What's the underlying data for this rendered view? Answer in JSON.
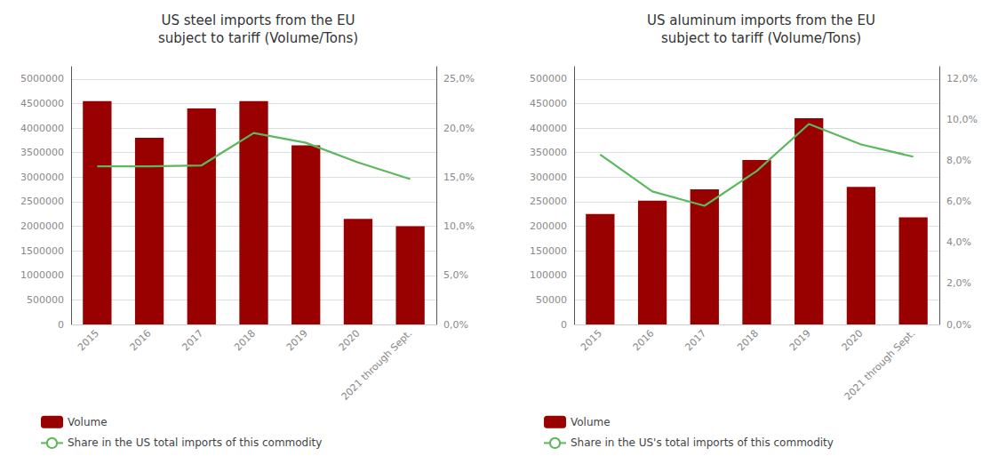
{
  "chart_data": [
    {
      "type": "bar",
      "title": "US steel imports from the EU\nsubject to tariff (Volume/Tons)",
      "categories": [
        "2015",
        "2016",
        "2017",
        "2018",
        "2019",
        "2020",
        "2021 through Sept."
      ],
      "series": [
        {
          "name": "Volume",
          "type": "bar",
          "color": "#990000",
          "values": [
            4550000,
            3800000,
            4400000,
            4550000,
            3650000,
            2150000,
            2000000
          ]
        },
        {
          "name": "Share in the US total imports of this commodity",
          "type": "line",
          "color": "#5cb85c",
          "axis": "y2",
          "values": [
            0.161,
            0.161,
            0.162,
            0.195,
            0.185,
            0.165,
            0.148
          ]
        }
      ],
      "ylim": [
        0,
        5250000
      ],
      "yticks": [
        0,
        500000,
        1000000,
        1500000,
        2000000,
        2500000,
        3000000,
        3500000,
        4000000,
        4500000,
        5000000
      ],
      "y2lim": [
        0,
        0.2625
      ],
      "y2ticks": [
        {
          "value": 0,
          "label": "0,0%"
        },
        {
          "value": 0.05,
          "label": "5,0%"
        },
        {
          "value": 0.1,
          "label": "10,0%"
        },
        {
          "value": 0.15,
          "label": "15,0%"
        },
        {
          "value": 0.2,
          "label": "20,0%"
        },
        {
          "value": 0.25,
          "label": "25,0%"
        }
      ],
      "grid": true,
      "legend": "bottom"
    },
    {
      "type": "bar",
      "title": "US aluminum imports from the EU\nsubject to tariff (Volume/Tons)",
      "categories": [
        "2015",
        "2016",
        "2017",
        "2018",
        "2019",
        "2020",
        "2021 through Sept."
      ],
      "series": [
        {
          "name": "Volume",
          "type": "bar",
          "color": "#990000",
          "values": [
            225000,
            252000,
            275000,
            335000,
            420000,
            280000,
            218000
          ]
        },
        {
          "name": "Share in the US's total imports of this commodity",
          "type": "line",
          "color": "#5cb85c",
          "axis": "y2",
          "values": [
            0.083,
            0.065,
            0.058,
            0.075,
            0.098,
            0.088,
            0.082
          ]
        }
      ],
      "ylim": [
        0,
        525000
      ],
      "yticks": [
        0,
        50000,
        100000,
        150000,
        200000,
        250000,
        300000,
        350000,
        400000,
        450000,
        500000
      ],
      "y2lim": [
        0,
        0.126
      ],
      "y2ticks": [
        {
          "value": 0,
          "label": "0,0%"
        },
        {
          "value": 0.02,
          "label": "2,0%"
        },
        {
          "value": 0.04,
          "label": "4,0%"
        },
        {
          "value": 0.06,
          "label": "6,0%"
        },
        {
          "value": 0.08,
          "label": "8,0%"
        },
        {
          "value": 0.1,
          "label": "10,0%"
        },
        {
          "value": 0.12,
          "label": "12,0%"
        }
      ],
      "grid": true,
      "legend": "bottom"
    }
  ]
}
